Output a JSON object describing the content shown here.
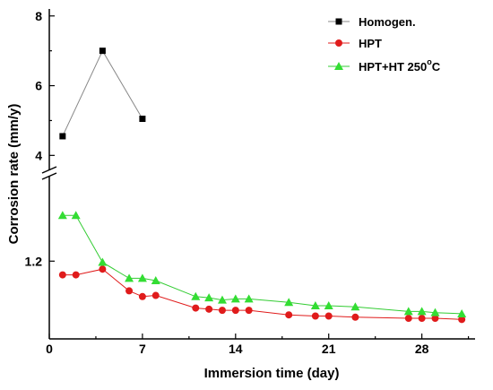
{
  "chart_data": {
    "type": "line",
    "xlabel": "Immersion time (day)",
    "ylabel": "Corrosion rate (mm/y)",
    "xlim": [
      0,
      32
    ],
    "x_ticks": [
      0,
      7,
      14,
      21,
      28
    ],
    "y_upper": {
      "range": [
        3.7,
        8.2
      ],
      "ticks": [
        4,
        6,
        8
      ]
    },
    "y_lower": {
      "range": [
        0.52,
        1.9
      ],
      "ticks": [
        1.2
      ]
    },
    "axis_break": "between 1.9 and 3.7 on the y axis",
    "legend_position": "top-right",
    "series": [
      {
        "name": "Homogen.",
        "legend_label": "Homogen.",
        "color": "#000000",
        "line_color": "#888888",
        "marker": "square",
        "points": [
          [
            1,
            4.55
          ],
          [
            4,
            7.0
          ],
          [
            7,
            5.05
          ]
        ]
      },
      {
        "name": "HPT",
        "legend_label": "HPT",
        "color": "#e01b1b",
        "line_color": "#e01b1b",
        "marker": "circle",
        "points": [
          [
            1,
            1.08
          ],
          [
            2,
            1.08
          ],
          [
            4,
            1.13
          ],
          [
            6,
            0.94
          ],
          [
            7,
            0.89
          ],
          [
            8,
            0.9
          ],
          [
            11,
            0.79
          ],
          [
            12,
            0.78
          ],
          [
            13,
            0.77
          ],
          [
            14,
            0.77
          ],
          [
            15,
            0.77
          ],
          [
            18,
            0.73
          ],
          [
            20,
            0.72
          ],
          [
            21,
            0.72
          ],
          [
            23,
            0.71
          ],
          [
            27,
            0.7
          ],
          [
            28,
            0.7
          ],
          [
            29,
            0.7
          ],
          [
            31,
            0.69
          ]
        ]
      },
      {
        "name": "HPT+HT 250°C",
        "legend_label": "HPT+HT 250",
        "legend_sup": "o",
        "legend_suffix": "C",
        "color": "#33dd33",
        "line_color": "#33cc33",
        "marker": "triangle",
        "points": [
          [
            1,
            1.6
          ],
          [
            2,
            1.6
          ],
          [
            4,
            1.19
          ],
          [
            6,
            1.05
          ],
          [
            7,
            1.05
          ],
          [
            8,
            1.03
          ],
          [
            11,
            0.89
          ],
          [
            12,
            0.88
          ],
          [
            13,
            0.86
          ],
          [
            14,
            0.87
          ],
          [
            15,
            0.87
          ],
          [
            18,
            0.84
          ],
          [
            20,
            0.81
          ],
          [
            21,
            0.81
          ],
          [
            23,
            0.8
          ],
          [
            27,
            0.76
          ],
          [
            28,
            0.76
          ],
          [
            29,
            0.75
          ],
          [
            31,
            0.74
          ]
        ]
      }
    ]
  }
}
